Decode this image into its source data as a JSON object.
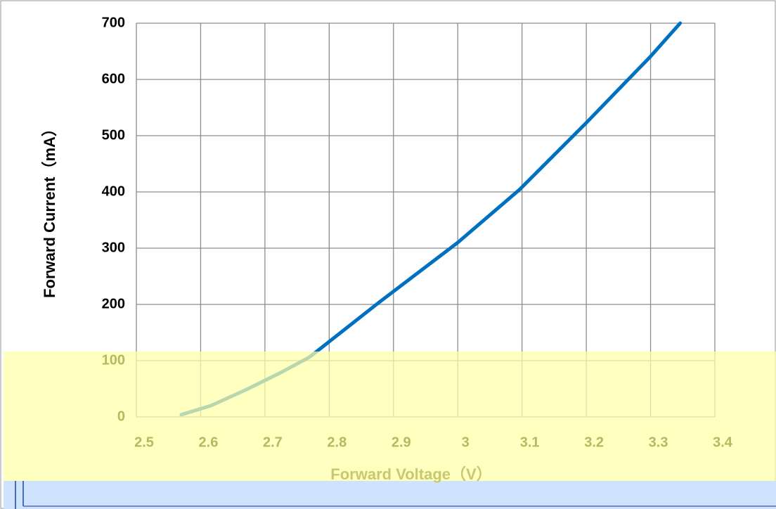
{
  "chart_data": {
    "type": "line",
    "y_label": "Forward Current（mA）",
    "x_label": "Forward Voltage（V）",
    "x": [
      2.57,
      2.616,
      2.67,
      2.725,
      2.769,
      2.878,
      3.0,
      3.096,
      3.2,
      3.3,
      3.346
    ],
    "series": [
      {
        "name": "Forward Current",
        "color": "#0070c0",
        "values": [
          4,
          20,
          48,
          79,
          106,
          204,
          310,
          404,
          523,
          641,
          700
        ]
      }
    ],
    "xlim": [
      2.5,
      3.4
    ],
    "xticks": [
      2.5,
      2.6,
      2.7,
      2.8,
      2.9,
      3.0,
      3.1,
      3.2,
      3.3,
      3.4
    ],
    "ylim": [
      0,
      700
    ],
    "yticks": [
      0,
      100,
      200,
      300,
      400,
      500,
      600,
      700
    ],
    "grid": true
  }
}
